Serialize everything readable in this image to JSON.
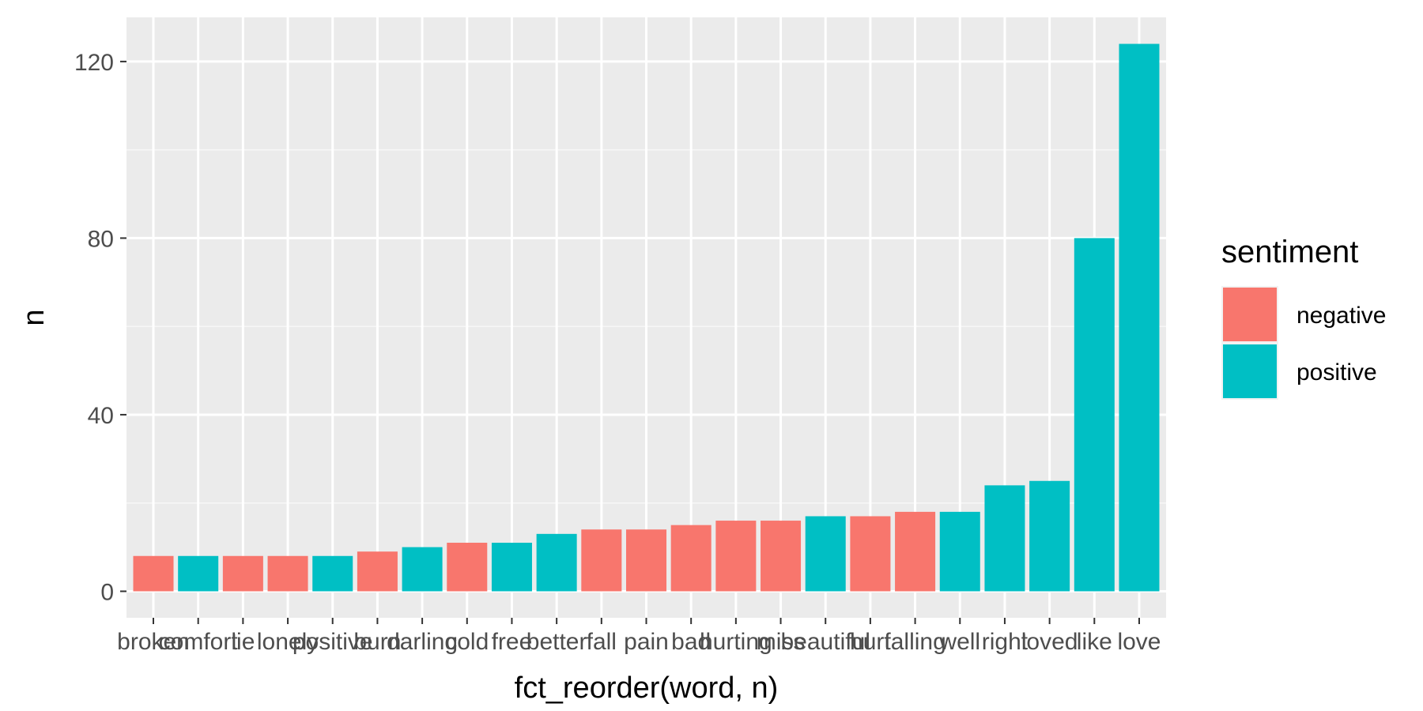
{
  "chart_data": {
    "type": "bar",
    "xlabel": "fct_reorder(word, n)",
    "ylabel": "n",
    "ylim": [
      -6,
      130
    ],
    "yticks": [
      0,
      40,
      80,
      120
    ],
    "grid": true,
    "legend": {
      "title": "sentiment",
      "position": "right",
      "entries": [
        {
          "name": "negative",
          "color": "#F8766D"
        },
        {
          "name": "positive",
          "color": "#00BFC4"
        }
      ]
    },
    "categories": [
      "broken",
      "comfort",
      "lie",
      "lonely",
      "positive",
      "burn",
      "darling",
      "cold",
      "free",
      "better",
      "fall",
      "pain",
      "bad",
      "hurting",
      "miss",
      "beautiful",
      "hurt",
      "falling",
      "well",
      "right",
      "loved",
      "like",
      "love"
    ],
    "values": [
      8,
      8,
      8,
      8,
      8,
      9,
      10,
      11,
      11,
      13,
      14,
      14,
      15,
      16,
      16,
      17,
      17,
      18,
      18,
      24,
      25,
      80,
      124
    ],
    "sentiment": [
      "negative",
      "positive",
      "negative",
      "negative",
      "positive",
      "negative",
      "positive",
      "negative",
      "positive",
      "positive",
      "negative",
      "negative",
      "negative",
      "negative",
      "negative",
      "positive",
      "negative",
      "negative",
      "positive",
      "positive",
      "positive",
      "positive",
      "positive"
    ]
  }
}
